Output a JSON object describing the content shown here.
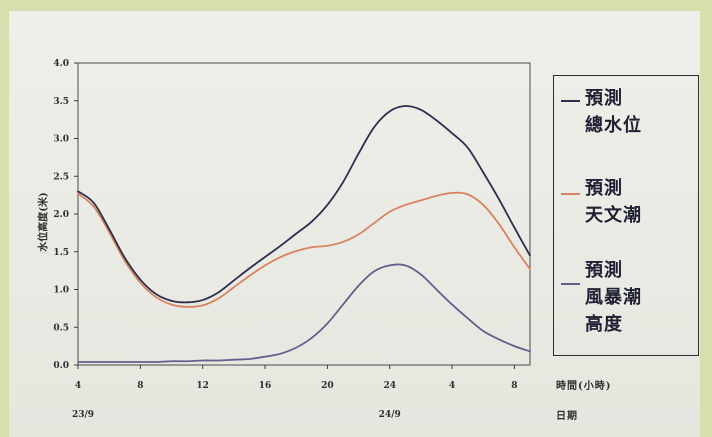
{
  "chart_data": {
    "type": "line",
    "title": "",
    "ylabel": "水位高度(米)",
    "xlabel": "時間(小時)",
    "date_label": "日期",
    "ylim": [
      0,
      4
    ],
    "y_ticks": [
      "0.0",
      "0.5",
      "1.0",
      "1.5",
      "2.0",
      "2.5",
      "3.0",
      "3.5",
      "4.0"
    ],
    "x_ticks": [
      {
        "hour": 4,
        "date": "23/9"
      },
      {
        "hour": 8
      },
      {
        "hour": 12
      },
      {
        "hour": 16
      },
      {
        "hour": 20
      },
      {
        "hour": 24,
        "date": "24/9"
      },
      {
        "hour": 4
      },
      {
        "hour": 8
      }
    ],
    "x": [
      4,
      5,
      6,
      7,
      8,
      9,
      10,
      11,
      12,
      13,
      14,
      15,
      16,
      17,
      18,
      19,
      20,
      21,
      22,
      23,
      24,
      1,
      2,
      3,
      4,
      5,
      6,
      7,
      8,
      9
    ],
    "series": [
      {
        "name": "預測\n總水位",
        "color": "#2c2e4c",
        "values": [
          2.3,
          2.15,
          1.8,
          1.42,
          1.13,
          0.94,
          0.85,
          0.83,
          0.86,
          0.96,
          1.12,
          1.28,
          1.43,
          1.58,
          1.74,
          1.9,
          2.12,
          2.42,
          2.8,
          3.15,
          3.36,
          3.43,
          3.38,
          3.24,
          3.07,
          2.88,
          2.55,
          2.2,
          1.82,
          1.45
        ]
      },
      {
        "name": "預測\n天文潮",
        "color": "#d8835f",
        "values": [
          2.27,
          2.1,
          1.76,
          1.38,
          1.09,
          0.9,
          0.8,
          0.77,
          0.79,
          0.88,
          1.03,
          1.18,
          1.32,
          1.43,
          1.51,
          1.56,
          1.58,
          1.63,
          1.73,
          1.88,
          2.03,
          2.12,
          2.18,
          2.24,
          2.28,
          2.26,
          2.12,
          1.87,
          1.56,
          1.27
        ]
      },
      {
        "name": "預測\n風暴潮\n高度",
        "color": "#625f8e",
        "values": [
          0.04,
          0.04,
          0.04,
          0.04,
          0.04,
          0.04,
          0.05,
          0.05,
          0.06,
          0.06,
          0.07,
          0.08,
          0.11,
          0.15,
          0.23,
          0.36,
          0.55,
          0.8,
          1.05,
          1.24,
          1.32,
          1.32,
          1.2,
          1.0,
          0.8,
          0.62,
          0.45,
          0.34,
          0.25,
          0.18
        ]
      }
    ],
    "grid": false,
    "legend": "right"
  },
  "colors": {
    "background": "#d8dead",
    "axis": "#4a4a4a"
  }
}
